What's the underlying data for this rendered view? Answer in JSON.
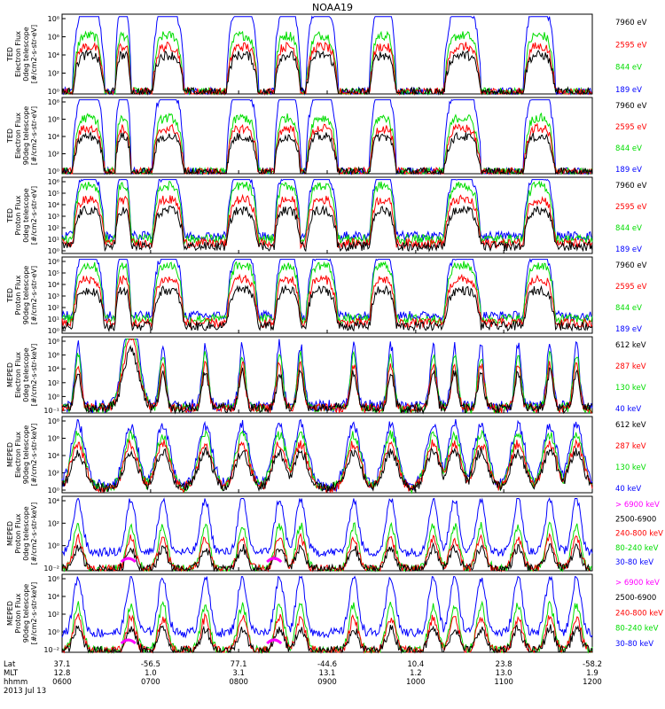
{
  "title": "NOAA19",
  "colors": {
    "blue": "#0000ff",
    "red": "#ff0000",
    "green": "#00dd00",
    "black": "#000000",
    "magenta": "#ff00ff"
  },
  "chart_data": [
    {
      "type": "line",
      "ylabel": [
        "TED",
        "Electron Flux",
        "0deg telescope",
        "[#/cm2-s-str-eV]"
      ],
      "yticks": [
        "10⁸",
        "10⁶",
        "10⁴",
        "10²",
        "10⁰"
      ],
      "ylim_exp": [
        0,
        8
      ],
      "scale": "log",
      "series": [
        {
          "name": "7960 eV",
          "color": "black"
        },
        {
          "name": "2595 eV",
          "color": "red"
        },
        {
          "name": "844 eV",
          "color": "green"
        },
        {
          "name": "189 eV",
          "color": "blue"
        }
      ]
    },
    {
      "type": "line",
      "ylabel": [
        "TED",
        "Electron Flux",
        "90deg telescope",
        "[#/cm2-s-str-eV]"
      ],
      "yticks": [
        "10⁸",
        "10⁶",
        "10⁴",
        "10²",
        "10⁰"
      ],
      "ylim_exp": [
        0,
        8
      ],
      "scale": "log",
      "series": [
        {
          "name": "7960 eV",
          "color": "black"
        },
        {
          "name": "2595 eV",
          "color": "red"
        },
        {
          "name": "844 eV",
          "color": "green"
        },
        {
          "name": "189 eV",
          "color": "blue"
        }
      ]
    },
    {
      "type": "line",
      "ylabel": [
        "TED",
        "Proton Flux",
        "0deg telescope",
        "[#/cm2-s-str-eV]"
      ],
      "yticks": [
        "10⁶",
        "10⁵",
        "10⁴",
        "10³",
        "10²",
        "10¹",
        "10⁰"
      ],
      "ylim_exp": [
        0,
        6
      ],
      "scale": "log",
      "series": [
        {
          "name": "7960 eV",
          "color": "black"
        },
        {
          "name": "2595 eV",
          "color": "red"
        },
        {
          "name": "844 eV",
          "color": "green"
        },
        {
          "name": "189 eV",
          "color": "blue"
        }
      ]
    },
    {
      "type": "line",
      "ylabel": [
        "TED",
        "Proton Flux",
        "90deg telescope",
        "[#/cm2-s-str-eV]"
      ],
      "yticks": [
        "10⁶",
        "10⁵",
        "10⁴",
        "10³",
        "10²",
        "10¹",
        "10⁰"
      ],
      "ylim_exp": [
        0,
        6
      ],
      "scale": "log",
      "series": [
        {
          "name": "7960 eV",
          "color": "black"
        },
        {
          "name": "2595 eV",
          "color": "red"
        },
        {
          "name": "844 eV",
          "color": "green"
        },
        {
          "name": "189 eV",
          "color": "blue"
        }
      ]
    },
    {
      "type": "line",
      "ylabel": [
        "MEPED",
        "Electron Flux",
        "0deg telescope",
        "[#/cm2-s-str-keV]"
      ],
      "yticks": [
        "10⁸",
        "10⁶",
        "10⁴",
        "10²",
        "10⁰",
        "10⁻¹"
      ],
      "ylim_exp": [
        -1,
        8
      ],
      "scale": "log",
      "series": [
        {
          "name": "612 keV",
          "color": "black"
        },
        {
          "name": "287 keV",
          "color": "red"
        },
        {
          "name": "130 keV",
          "color": "green"
        },
        {
          "name": "40 keV",
          "color": "blue"
        }
      ]
    },
    {
      "type": "line",
      "ylabel": [
        "MEPED",
        "Electron Flux",
        "90deg telescope",
        "[#/cm2-s-str-keV]"
      ],
      "yticks": [
        "10⁸",
        "10⁶",
        "10⁴",
        "10²",
        "10⁰"
      ],
      "ylim_exp": [
        0,
        8
      ],
      "scale": "log",
      "series": [
        {
          "name": "612 keV",
          "color": "black"
        },
        {
          "name": "287 keV",
          "color": "red"
        },
        {
          "name": "130 keV",
          "color": "green"
        },
        {
          "name": "40 keV",
          "color": "blue"
        }
      ]
    },
    {
      "type": "line",
      "ylabel": [
        "MEPED",
        "Proton Flux",
        "0deg telescope",
        "[#/cm2-s-str-keV]"
      ],
      "yticks": [
        "10⁴",
        "10²",
        "10⁰",
        "10⁻²"
      ],
      "ylim_exp": [
        -2,
        6
      ],
      "scale": "log",
      "series": [
        {
          "name": "> 6900 keV",
          "color": "magenta"
        },
        {
          "name": "2500-6900",
          "color": "black"
        },
        {
          "name": "240-800 keV",
          "color": "red"
        },
        {
          "name": "80-240 keV",
          "color": "green"
        },
        {
          "name": "30-80 keV",
          "color": "blue"
        }
      ]
    },
    {
      "type": "line",
      "ylabel": [
        "MEPED",
        "Proton Flux",
        "90deg telescope",
        "[#/cm2-s-str-keV]"
      ],
      "yticks": [
        "10⁶",
        "10⁴",
        "10²",
        "10⁰",
        "10⁻²"
      ],
      "ylim_exp": [
        -2,
        6
      ],
      "scale": "log",
      "series": [
        {
          "name": "> 6900 keV",
          "color": "magenta"
        },
        {
          "name": "2500-6900",
          "color": "black"
        },
        {
          "name": "240-800 keV",
          "color": "red"
        },
        {
          "name": "80-240 keV",
          "color": "green"
        },
        {
          "name": "30-80 keV",
          "color": "blue"
        }
      ]
    }
  ],
  "x_axis": {
    "row_labels": [
      "Lat",
      "MLT",
      "hhmm"
    ],
    "date_label": "2013 Jul 13",
    "ticks": [
      {
        "frac": 0.0,
        "lat": "37.1",
        "mlt": "12.8",
        "hhmm": "0600"
      },
      {
        "frac": 0.167,
        "lat": "-56.5",
        "mlt": "1.0",
        "hhmm": "0700"
      },
      {
        "frac": 0.333,
        "lat": "77.1",
        "mlt": "3.1",
        "hhmm": "0800"
      },
      {
        "frac": 0.5,
        "lat": "-44.6",
        "mlt": "13.1",
        "hhmm": "0900"
      },
      {
        "frac": 0.667,
        "lat": "10.4",
        "mlt": "1.2",
        "hhmm": "1000"
      },
      {
        "frac": 0.833,
        "lat": "23.8",
        "mlt": "13.0",
        "hhmm": "1100"
      },
      {
        "frac": 1.0,
        "lat": "-58.2",
        "mlt": "1.9",
        "hhmm": "1200"
      }
    ]
  }
}
